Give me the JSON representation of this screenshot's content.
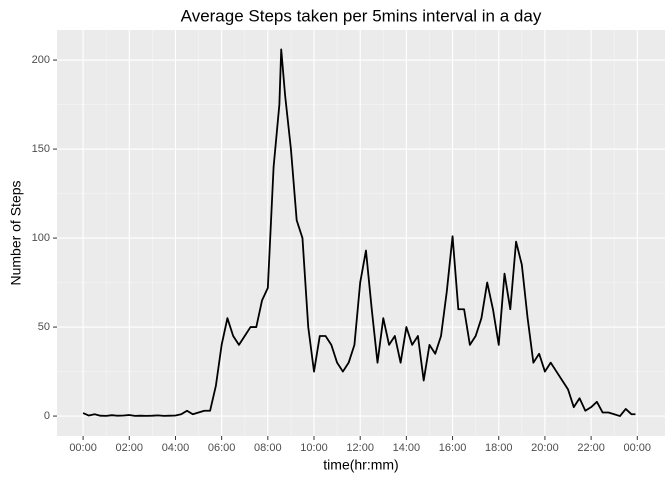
{
  "chart_data": {
    "type": "line",
    "title": "Average Steps taken per 5mins interval in a day",
    "x_label": "time(hr:mm)",
    "y_label": "Number of Steps",
    "x": [
      0,
      0.25,
      0.5,
      0.75,
      1,
      1.25,
      1.5,
      1.75,
      2,
      2.25,
      2.5,
      2.75,
      3,
      3.25,
      3.5,
      3.75,
      4,
      4.25,
      4.5,
      4.75,
      5,
      5.25,
      5.5,
      5.75,
      6,
      6.25,
      6.5,
      6.75,
      7,
      7.25,
      7.5,
      7.75,
      8,
      8.25,
      8.5,
      8.58,
      8.75,
      9,
      9.25,
      9.5,
      9.75,
      10,
      10.25,
      10.5,
      10.75,
      11,
      11.25,
      11.5,
      11.75,
      12,
      12.25,
      12.5,
      12.75,
      13,
      13.25,
      13.5,
      13.75,
      14,
      14.25,
      14.5,
      14.75,
      15,
      15.25,
      15.5,
      15.75,
      16,
      16.25,
      16.5,
      16.75,
      17,
      17.25,
      17.5,
      17.75,
      18,
      18.25,
      18.5,
      18.75,
      19,
      19.25,
      19.5,
      19.75,
      20,
      20.25,
      20.5,
      20.75,
      21,
      21.25,
      21.5,
      21.75,
      22,
      22.25,
      22.5,
      22.75,
      23,
      23.25,
      23.5,
      23.75,
      23.92
    ],
    "series": [
      {
        "name": "steps",
        "color": "#000000",
        "values": [
          1.7,
          0.3,
          1,
          0.2,
          0.1,
          0.5,
          0.2,
          0.3,
          0.6,
          0.1,
          0.2,
          0.1,
          0.2,
          0.4,
          0.1,
          0.2,
          0.3,
          1,
          3,
          1,
          2,
          3,
          3,
          17,
          40,
          55,
          45,
          40,
          45,
          50,
          50,
          65,
          72,
          140,
          175,
          206,
          180,
          150,
          110,
          100,
          50,
          25,
          45,
          45,
          40,
          30,
          25,
          30,
          40,
          75,
          93,
          60,
          30,
          55,
          40,
          45,
          30,
          50,
          40,
          45,
          20,
          40,
          35,
          45,
          70,
          101,
          60,
          60,
          40,
          45,
          55,
          75,
          60,
          40,
          80,
          60,
          98,
          85,
          55,
          30,
          35,
          25,
          30,
          25,
          20,
          15,
          5,
          10,
          3,
          5,
          8,
          2,
          2,
          1,
          0,
          4,
          1,
          1
        ]
      }
    ],
    "xlim": [
      -1.13,
      25.2
    ],
    "ylim": [
      -11.2,
      216.9
    ],
    "xticks": [
      {
        "value": 0,
        "label": "00:00"
      },
      {
        "value": 2,
        "label": "02:00"
      },
      {
        "value": 4,
        "label": "04:00"
      },
      {
        "value": 6,
        "label": "06:00"
      },
      {
        "value": 8,
        "label": "08:00"
      },
      {
        "value": 10,
        "label": "10:00"
      },
      {
        "value": 12,
        "label": "12:00"
      },
      {
        "value": 14,
        "label": "14:00"
      },
      {
        "value": 16,
        "label": "16:00"
      },
      {
        "value": 18,
        "label": "18:00"
      },
      {
        "value": 20,
        "label": "20:00"
      },
      {
        "value": 22,
        "label": "22:00"
      },
      {
        "value": 24,
        "label": "00:00"
      }
    ],
    "yticks": [
      0,
      50,
      100,
      150,
      200
    ],
    "grid": true
  }
}
